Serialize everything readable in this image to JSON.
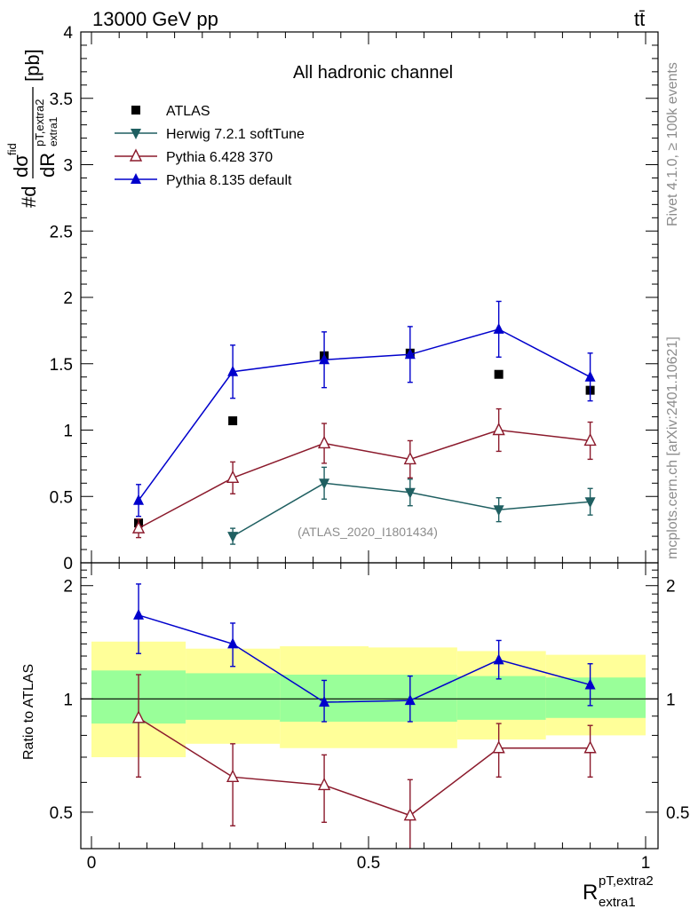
{
  "header": {
    "left": "13000 GeV pp",
    "right": "tt̄"
  },
  "side_labels": {
    "rivet": "Rivet 4.1.0, ≥ 100k events",
    "source": "mcplots.cern.ch [arXiv:2401.10621]"
  },
  "chart_data": [
    {
      "type": "scatter",
      "title": "All hadronic channel",
      "watermark": "(ATLAS_2020_I1801434)",
      "ylabel": "#d dσ^fid / dR^{pT,extra2}_{extra1} [pb]",
      "ylabel_parts": {
        "prefix": "#d",
        "num": "dσ",
        "num_sup": "fid",
        "den": "dR",
        "den_sub": "extra1",
        "den_sup": "pT,extra2",
        "unit": "[pb]"
      },
      "xlim": [
        0,
        1
      ],
      "ylim": [
        0,
        4
      ],
      "y_ticks": [
        "0",
        "0.5",
        "1",
        "1.5",
        "2",
        "2.5",
        "3",
        "3.5",
        "4"
      ],
      "y_tick_values": [
        0,
        0.5,
        1,
        1.5,
        2,
        2.5,
        3,
        3.5,
        4
      ],
      "x": [
        0.085,
        0.255,
        0.42,
        0.575,
        0.735,
        0.9
      ],
      "series": [
        {
          "name": "ATLAS",
          "color": "#000000",
          "marker": "square",
          "values": [
            0.3,
            1.07,
            1.56,
            1.58,
            1.42,
            1.3
          ]
        },
        {
          "name": "Herwig 7.2.1 softTune",
          "color": "#1f5f61",
          "marker": "triangle-down",
          "values": [
            null,
            0.2,
            0.6,
            0.53,
            0.4,
            0.46
          ],
          "err": [
            null,
            0.06,
            0.12,
            0.1,
            0.09,
            0.1
          ]
        },
        {
          "name": "Pythia 6.428 370",
          "color": "#8b1a2c",
          "marker": "triangle-up-open",
          "values": [
            0.26,
            0.64,
            0.9,
            0.78,
            1.0,
            0.92
          ],
          "err": [
            0.07,
            0.12,
            0.15,
            0.14,
            0.16,
            0.14
          ]
        },
        {
          "name": "Pythia 8.135 default",
          "color": "#0000cc",
          "marker": "triangle-up",
          "values": [
            0.47,
            1.44,
            1.53,
            1.57,
            1.76,
            1.4
          ],
          "err": [
            0.12,
            0.2,
            0.21,
            0.21,
            0.21,
            0.18
          ]
        }
      ]
    },
    {
      "type": "scatter",
      "ylabel": "Ratio to ATLAS",
      "xlabel": "R^{pT,extra2}_{extra1}",
      "xlabel_parts": {
        "base": "R",
        "sup": "pT,extra2",
        "sub": "extra1"
      },
      "xlim": [
        0,
        1
      ],
      "ylim": [
        0.4,
        2.3
      ],
      "y_scale": "log",
      "x_ticks": [
        "0",
        "0.5",
        "1"
      ],
      "x_tick_values": [
        0,
        0.5,
        1
      ],
      "y_ticks": [
        "0.5",
        "1",
        "2"
      ],
      "y_tick_values": [
        0.5,
        1,
        2
      ],
      "bands": {
        "edges": [
          0.0,
          0.17,
          0.34,
          0.5,
          0.66,
          0.82,
          1.0
        ],
        "green_lo": [
          0.86,
          0.88,
          0.87,
          0.87,
          0.88,
          0.89
        ],
        "green_hi": [
          1.19,
          1.17,
          1.16,
          1.16,
          1.15,
          1.14
        ],
        "yellow_lo": [
          0.7,
          0.76,
          0.74,
          0.74,
          0.78,
          0.8
        ],
        "yellow_hi": [
          1.42,
          1.36,
          1.38,
          1.37,
          1.34,
          1.31
        ]
      },
      "x": [
        0.085,
        0.255,
        0.42,
        0.575,
        0.735,
        0.9
      ],
      "series": [
        {
          "name": "Pythia 6.428 370",
          "color": "#8b1a2c",
          "marker": "triangle-up-open",
          "values": [
            0.89,
            0.62,
            0.59,
            0.49,
            0.74,
            0.74
          ],
          "err_lo": [
            0.27,
            0.16,
            0.12,
            0.13,
            0.12,
            0.12
          ],
          "err_hi": [
            0.27,
            0.14,
            0.12,
            0.12,
            0.12,
            0.11
          ]
        },
        {
          "name": "Pythia 8.135 default",
          "color": "#0000cc",
          "marker": "triangle-up",
          "values": [
            1.67,
            1.4,
            0.98,
            0.99,
            1.27,
            1.09
          ],
          "err_lo": [
            0.35,
            0.18,
            0.11,
            0.12,
            0.14,
            0.13
          ],
          "err_hi": [
            0.35,
            0.19,
            0.14,
            0.16,
            0.16,
            0.15
          ]
        }
      ]
    }
  ]
}
